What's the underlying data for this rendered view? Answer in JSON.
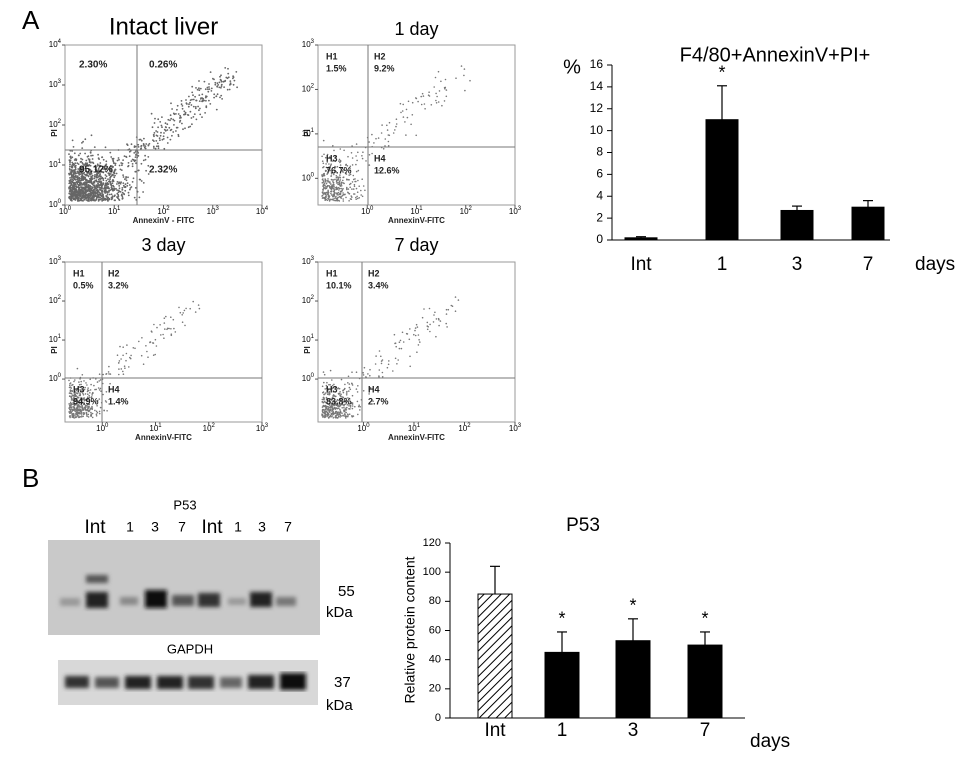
{
  "panel_labels": [
    "A",
    "B"
  ],
  "flow_plots": [
    {
      "title": "Intact liver",
      "xlabel": "AnnexinV - FITC",
      "ylabel": "PI",
      "tick_base": "10",
      "xlim": [
        0,
        4
      ],
      "ylim": [
        0,
        4
      ],
      "xticks": [
        0,
        1,
        2,
        3,
        4
      ],
      "yticks": [
        0,
        1,
        2,
        3,
        4
      ],
      "quadrants": [
        {
          "percent": "2.30%"
        },
        {
          "percent": "0.26%"
        },
        {
          "percent": "95.12%"
        },
        {
          "percent": "2.32%"
        }
      ]
    },
    {
      "title": "1 day",
      "xlabel": "AnnexinV-FITC",
      "ylabel": "PI",
      "tick_base": "10",
      "xlim": [
        -1,
        3
      ],
      "ylim": [
        -0.6,
        3
      ],
      "xticks": [
        0,
        1,
        2,
        3
      ],
      "yticks": [
        0,
        1,
        2,
        3
      ],
      "quadrants": [
        {
          "name": "H1",
          "percent": "1.5%"
        },
        {
          "name": "H2",
          "percent": "9.2%"
        },
        {
          "name": "H3",
          "percent": "76.7%"
        },
        {
          "name": "H4",
          "percent": "12.6%"
        }
      ]
    },
    {
      "title": "3 day",
      "xlabel": "AnnexinV-FITC",
      "ylabel": "PI",
      "tick_base": "10",
      "xlim": [
        -0.7,
        3
      ],
      "ylim": [
        -1.1,
        3
      ],
      "xticks": [
        0,
        1,
        2,
        3
      ],
      "yticks": [
        0,
        1,
        2,
        3
      ],
      "quadrants": [
        {
          "name": "H1",
          "percent": "0.5%"
        },
        {
          "name": "H2",
          "percent": "3.2%"
        },
        {
          "name": "H3",
          "percent": "94.9%"
        },
        {
          "name": "H4",
          "percent": "1.4%"
        }
      ]
    },
    {
      "title": "7 day",
      "xlabel": "AnnexinV-FITC",
      "ylabel": "PI",
      "tick_base": "10",
      "xlim": [
        -0.9,
        3
      ],
      "ylim": [
        -1.1,
        3
      ],
      "xticks": [
        0,
        1,
        2,
        3
      ],
      "yticks": [
        0,
        1,
        2,
        3
      ],
      "quadrants": [
        {
          "name": "H1",
          "percent": "10.1%"
        },
        {
          "name": "H2",
          "percent": "3.4%"
        },
        {
          "name": "H3",
          "percent": "83.8%"
        },
        {
          "name": "H4",
          "percent": "2.7%"
        }
      ]
    }
  ],
  "chart_data": [
    {
      "type": "bar",
      "title": "F4/80+AnnexinV+PI+",
      "ylabel": "%",
      "xlabel": "days",
      "categories": [
        "Int",
        "1",
        "3",
        "7"
      ],
      "values": [
        0.2,
        11,
        2.7,
        3.0
      ],
      "errors": [
        0.1,
        3.1,
        0.4,
        0.6
      ],
      "annotations": [
        null,
        "*",
        null,
        null
      ],
      "color": "#000000",
      "fills": [
        "solid",
        "solid",
        "solid",
        "solid"
      ],
      "ylim": [
        0,
        16
      ],
      "yticks": [
        0,
        2,
        4,
        6,
        8,
        10,
        12,
        14,
        16
      ]
    },
    {
      "type": "bar",
      "title": "P53",
      "ylabel": "Relative protein content",
      "xlabel": "days",
      "categories": [
        "Int",
        "1",
        "3",
        "7"
      ],
      "values": [
        85,
        45,
        53,
        50
      ],
      "errors": [
        19,
        14,
        15,
        9
      ],
      "annotations": [
        null,
        "*",
        "*",
        "*"
      ],
      "color": "#000000",
      "fills": [
        "hatched",
        "solid",
        "solid",
        "solid"
      ],
      "ylim": [
        0,
        120
      ],
      "yticks": [
        0,
        20,
        40,
        60,
        80,
        100,
        120
      ]
    }
  ],
  "blot": {
    "title": "P53",
    "lanes": [
      "Int",
      "1",
      "3",
      "7",
      "Int",
      "1",
      "3",
      "7"
    ],
    "size": 55,
    "unit": "kDa",
    "loading_control": {
      "title": "GAPDH",
      "size": 37,
      "unit": "kDa"
    }
  }
}
